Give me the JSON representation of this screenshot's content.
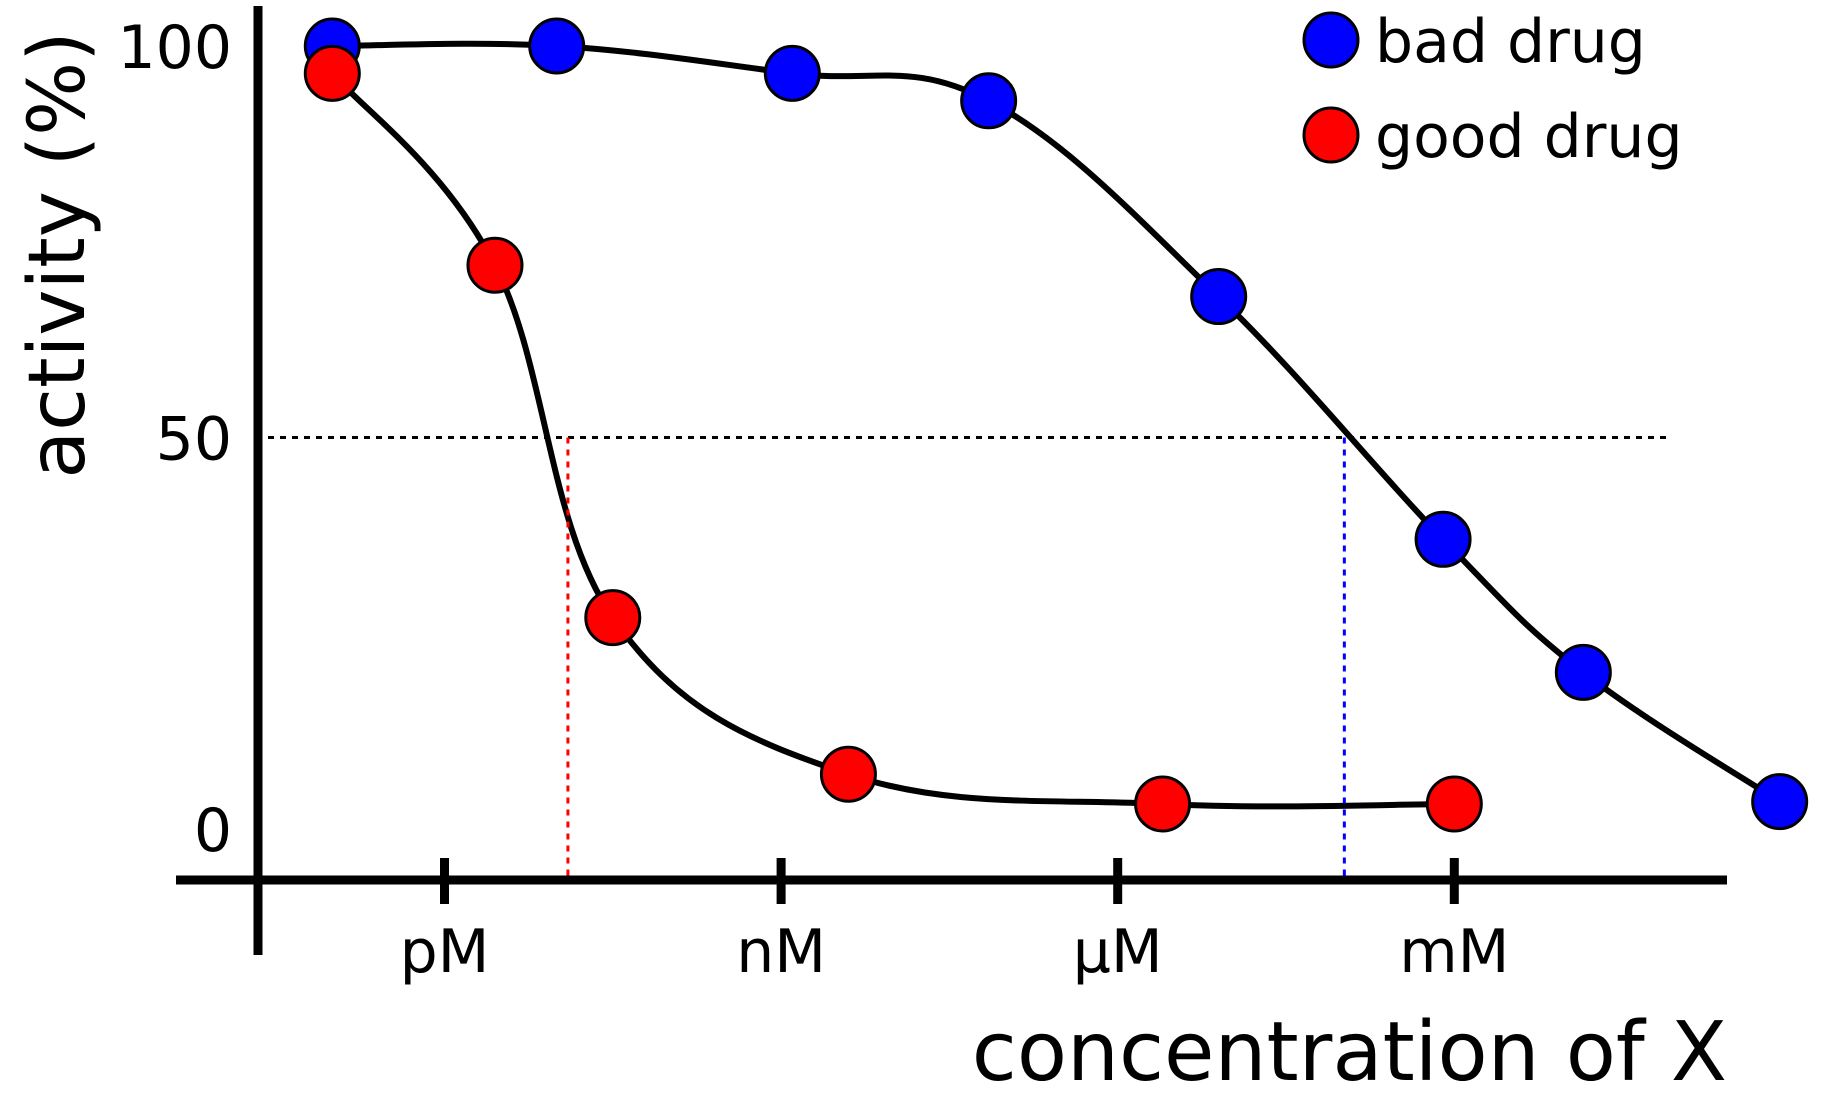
{
  "chart_data": {
    "type": "scatter",
    "xlabel": "concentration of X",
    "ylabel": "activity (%)",
    "x_scale": "log10",
    "x_unit": "M",
    "xlim": [
      -12.8,
      -2.0
    ],
    "ylim": [
      -6.5,
      107
    ],
    "x_ticks": [
      {
        "value": -12,
        "label": "pM"
      },
      {
        "value": -9,
        "label": "nM"
      },
      {
        "value": -6,
        "label": "µM"
      },
      {
        "value": -3,
        "label": "mM"
      }
    ],
    "y_ticks": [
      {
        "value": 0,
        "label": "0"
      },
      {
        "value": 50,
        "label": "50"
      },
      {
        "value": 100,
        "label": "100"
      }
    ],
    "reference_line": {
      "y": 50,
      "style": "dotted",
      "color": "#000000"
    },
    "ic50_markers": [
      {
        "series": "good drug",
        "x": -10.9,
        "color": "#ff0000"
      },
      {
        "series": "bad drug",
        "x": -3.98,
        "color": "#0000ff"
      }
    ],
    "legend_position": "top-right",
    "series": [
      {
        "name": "bad drug",
        "color": "#0000ff",
        "points": [
          {
            "x": -13.0,
            "y": 100
          },
          {
            "x": -11.0,
            "y": 100
          },
          {
            "x": -8.9,
            "y": 96.5
          },
          {
            "x": -7.15,
            "y": 93
          },
          {
            "x": -5.1,
            "y": 68
          },
          {
            "x": -3.1,
            "y": 37
          },
          {
            "x": -1.85,
            "y": 20
          },
          {
            "x": -0.1,
            "y": 3.5
          }
        ]
      },
      {
        "name": "good drug",
        "color": "#ff0000",
        "points": [
          {
            "x": -13.0,
            "y": 96.5
          },
          {
            "x": -11.55,
            "y": 72
          },
          {
            "x": -10.5,
            "y": 27
          },
          {
            "x": -8.4,
            "y": 7
          },
          {
            "x": -5.6,
            "y": 3.2
          },
          {
            "x": -3.0,
            "y": 3.2
          }
        ]
      }
    ]
  }
}
